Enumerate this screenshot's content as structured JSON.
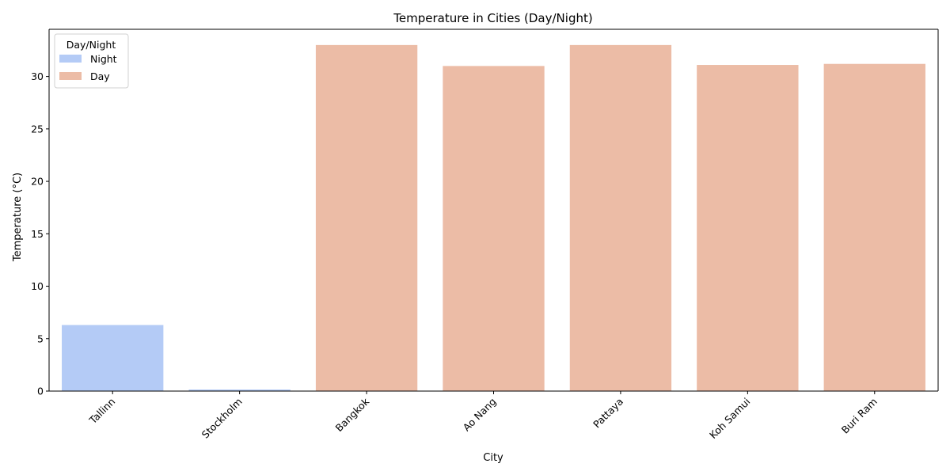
{
  "chart_data": {
    "type": "bar",
    "title": "Temperature in Cities (Day/Night)",
    "xlabel": "City",
    "ylabel": "Temperature (°C)",
    "ylim": [
      0,
      34.5
    ],
    "yticks": [
      0,
      5,
      10,
      15,
      20,
      25,
      30
    ],
    "categories": [
      "Tallinn",
      "Stockholm",
      "Bangkok",
      "Ao Nang",
      "Pattaya",
      "Koh Samui",
      "Buri Ram"
    ],
    "values": [
      6.3,
      0.15,
      33.0,
      31.0,
      33.0,
      31.1,
      31.2
    ],
    "groups": [
      "Night",
      "Night",
      "Day",
      "Day",
      "Day",
      "Day",
      "Day"
    ],
    "series": [
      {
        "name": "Night",
        "color": "#b4cbf6"
      },
      {
        "name": "Day",
        "color": "#ecbca6"
      }
    ],
    "legend": {
      "title": "Day/Night",
      "placement": "top-left"
    },
    "grid": false,
    "x_tick_rotation": 45
  }
}
